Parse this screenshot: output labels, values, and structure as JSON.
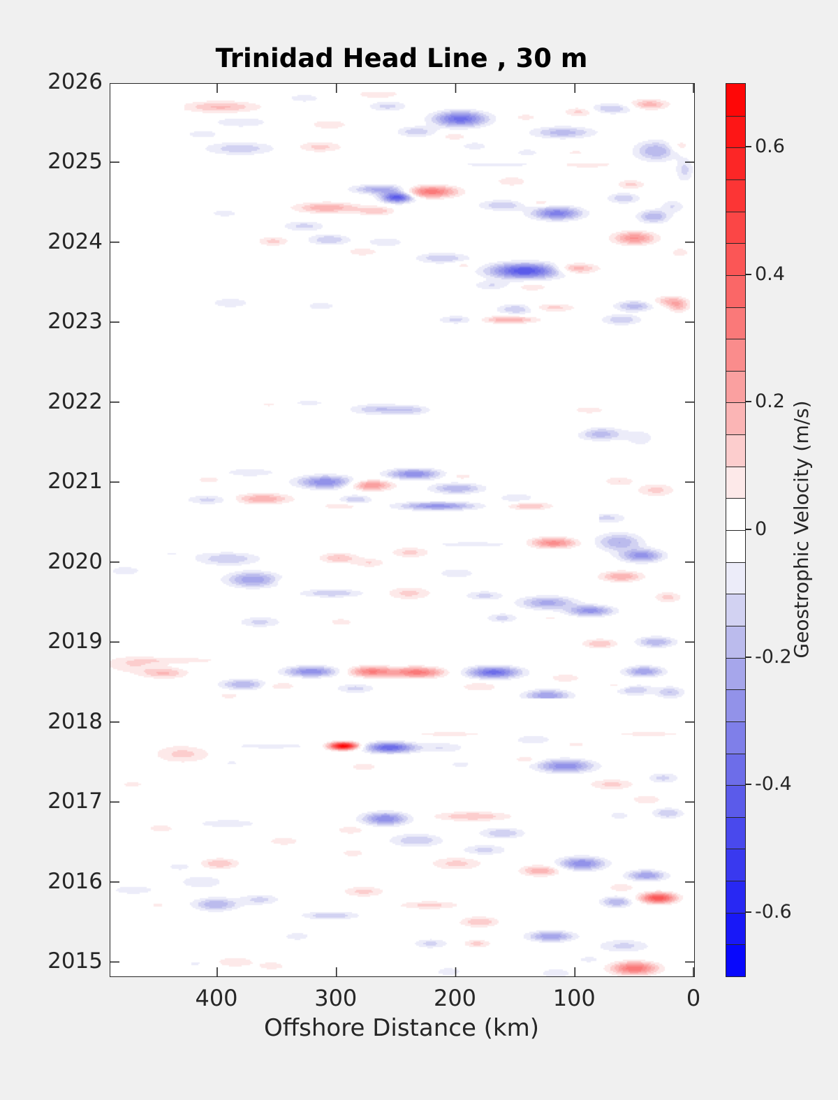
{
  "figure": {
    "background_color": "#f0f0f0",
    "axis_color": "#262626",
    "title_color": "#000000"
  },
  "chart_data": {
    "type": "heatmap",
    "subtype": "filled-contour-hovmoller",
    "title": "Trinidad Head Line , 30 m",
    "xlabel": "Offshore Distance (km)",
    "x_ticks": [
      400,
      300,
      200,
      100,
      0
    ],
    "x_tick_labels": [
      "400",
      "300",
      "200",
      "100",
      "0"
    ],
    "x_range_km": [
      489,
      0
    ],
    "x_axis_reversed": true,
    "y_ticks": [
      2026,
      2025,
      2024,
      2023,
      2022,
      2021,
      2020,
      2019,
      2018,
      2017,
      2016,
      2015
    ],
    "y_range_years": [
      2014.82,
      2025.98
    ],
    "grid": false,
    "colorbar": {
      "label": "Geostrophic Velocity (m/s)",
      "range": [
        -0.7,
        0.7
      ],
      "level_step": 0.05,
      "ticks": [
        0.6,
        0.4,
        0.2,
        0,
        -0.2,
        -0.4,
        -0.6
      ],
      "tick_labels": [
        "0.6",
        "0.4",
        "0.2",
        "0",
        "-0.2",
        "-0.4",
        "-0.6"
      ],
      "max_color": "#ff0000",
      "zero_color": "#ffffff",
      "min_color": "#0000ff",
      "outline_color": "#262626"
    },
    "anomalies_format": [
      "offshore_km",
      "year",
      "peak_velocity_m_per_s",
      "sigma_km",
      "sigma_yr"
    ],
    "anomalies": [
      [
        397,
        2025.69,
        0.16,
        22,
        0.05
      ],
      [
        380,
        2025.5,
        -0.1,
        16,
        0.045
      ],
      [
        412,
        2025.35,
        -0.08,
        11,
        0.04
      ],
      [
        381,
        2025.17,
        -0.14,
        20,
        0.055
      ],
      [
        314,
        2025.19,
        0.12,
        13,
        0.045
      ],
      [
        306,
        2025.47,
        0.1,
        11,
        0.04
      ],
      [
        327,
        2025.8,
        -0.08,
        11,
        0.04
      ],
      [
        265,
        2025.85,
        0.1,
        13,
        0.04
      ],
      [
        257,
        2025.7,
        -0.12,
        11,
        0.045
      ],
      [
        196,
        2025.54,
        -0.38,
        15,
        0.065
      ],
      [
        233,
        2025.38,
        -0.14,
        11,
        0.045
      ],
      [
        201,
        2025.32,
        0.1,
        7,
        0.03
      ],
      [
        184,
        2025.2,
        -0.08,
        9,
        0.04
      ],
      [
        110,
        2025.37,
        -0.18,
        18,
        0.05
      ],
      [
        141,
        2025.56,
        0.08,
        7,
        0.03
      ],
      [
        96,
        2025.63,
        0.12,
        9,
        0.04
      ],
      [
        69,
        2025.67,
        -0.15,
        13,
        0.045
      ],
      [
        38,
        2025.72,
        0.18,
        11,
        0.045
      ],
      [
        32,
        2025.14,
        -0.2,
        12,
        0.085
      ],
      [
        12,
        2025.2,
        0.1,
        6,
        0.05
      ],
      [
        140,
        2025.12,
        -0.07,
        9,
        0.04
      ],
      [
        99,
        2025.12,
        0.06,
        8,
        0.03
      ],
      [
        165,
        2024.97,
        -0.08,
        26,
        0.022
      ],
      [
        90,
        2024.97,
        0.1,
        16,
        0.028
      ],
      [
        221,
        2024.63,
        0.34,
        15,
        0.05
      ],
      [
        249,
        2024.56,
        -0.45,
        9,
        0.045
      ],
      [
        263,
        2024.66,
        -0.22,
        16,
        0.04
      ],
      [
        161,
        2024.46,
        -0.15,
        13,
        0.045
      ],
      [
        153,
        2024.76,
        0.1,
        9,
        0.04
      ],
      [
        129,
        2024.49,
        0.08,
        8,
        0.03
      ],
      [
        115,
        2024.36,
        -0.33,
        14,
        0.055
      ],
      [
        53,
        2024.72,
        0.12,
        8,
        0.04
      ],
      [
        59,
        2024.55,
        -0.15,
        9,
        0.045
      ],
      [
        34,
        2024.32,
        -0.2,
        9,
        0.055
      ],
      [
        50,
        2024.05,
        0.26,
        12,
        0.055
      ],
      [
        308,
        2024.43,
        0.2,
        18,
        0.045
      ],
      [
        267,
        2024.39,
        0.14,
        11,
        0.04
      ],
      [
        394,
        2024.36,
        -0.07,
        11,
        0.04
      ],
      [
        327,
        2024.2,
        -0.12,
        12,
        0.045
      ],
      [
        306,
        2024.03,
        -0.15,
        12,
        0.045
      ],
      [
        353,
        2024.01,
        0.12,
        9,
        0.04
      ],
      [
        259,
        2024.0,
        -0.1,
        11,
        0.04
      ],
      [
        278,
        2023.88,
        0.1,
        9,
        0.035
      ],
      [
        12,
        2023.87,
        0.08,
        6,
        0.045
      ],
      [
        18,
        2024.45,
        -0.1,
        7,
        0.055
      ],
      [
        8,
        2024.9,
        -0.12,
        5,
        0.1
      ],
      [
        142,
        2023.64,
        -0.45,
        20,
        0.065
      ],
      [
        99,
        2023.67,
        0.2,
        12,
        0.045
      ],
      [
        211,
        2023.8,
        -0.15,
        15,
        0.045
      ],
      [
        193,
        2023.71,
        0.08,
        7,
        0.03
      ],
      [
        170,
        2023.46,
        -0.1,
        11,
        0.04
      ],
      [
        136,
        2023.44,
        0.1,
        9,
        0.035
      ],
      [
        149,
        2023.16,
        -0.15,
        11,
        0.045
      ],
      [
        118,
        2023.18,
        0.12,
        13,
        0.035
      ],
      [
        155,
        2023.03,
        0.2,
        16,
        0.032
      ],
      [
        199,
        2023.03,
        -0.12,
        11,
        0.035
      ],
      [
        61,
        2023.03,
        -0.15,
        11,
        0.045
      ],
      [
        21,
        2023.26,
        0.15,
        9,
        0.045
      ],
      [
        50,
        2023.2,
        -0.18,
        11,
        0.045
      ],
      [
        13,
        2023.2,
        0.15,
        6,
        0.055
      ],
      [
        389,
        2023.24,
        -0.09,
        12,
        0.045
      ],
      [
        341,
        2023.46,
        -0.05,
        9,
        0.035
      ],
      [
        313,
        2023.2,
        -0.08,
        10,
        0.04
      ],
      [
        356,
        2021.97,
        0.06,
        9,
        0.028
      ],
      [
        323,
        2021.99,
        -0.07,
        13,
        0.028
      ],
      [
        265,
        2021.91,
        -0.15,
        16,
        0.045
      ],
      [
        237,
        2021.9,
        -0.12,
        11,
        0.04
      ],
      [
        88,
        2021.9,
        0.08,
        11,
        0.035
      ],
      [
        78,
        2021.6,
        -0.18,
        13,
        0.055
      ],
      [
        102,
        2021.66,
        0.06,
        8,
        0.035
      ],
      [
        45,
        2021.55,
        -0.08,
        9,
        0.075
      ],
      [
        268,
        2021.43,
        0.05,
        6,
        0.03
      ],
      [
        407,
        2021.03,
        0.08,
        8,
        0.035
      ],
      [
        372,
        2021.12,
        -0.1,
        15,
        0.035
      ],
      [
        309,
        2021.0,
        -0.3,
        16,
        0.055
      ],
      [
        271,
        2020.96,
        0.26,
        12,
        0.045
      ],
      [
        235,
        2021.1,
        -0.3,
        15,
        0.045
      ],
      [
        195,
        2021.07,
        0.08,
        7,
        0.03
      ],
      [
        199,
        2020.92,
        -0.2,
        15,
        0.045
      ],
      [
        63,
        2021.01,
        0.1,
        9,
        0.04
      ],
      [
        32,
        2020.9,
        0.12,
        11,
        0.055
      ],
      [
        149,
        2020.8,
        -0.1,
        11,
        0.04
      ],
      [
        138,
        2020.7,
        0.15,
        13,
        0.035
      ],
      [
        215,
        2020.7,
        -0.28,
        22,
        0.035
      ],
      [
        362,
        2020.79,
        0.2,
        16,
        0.045
      ],
      [
        407,
        2020.78,
        -0.12,
        13,
        0.04
      ],
      [
        296,
        2020.7,
        0.1,
        11,
        0.03
      ],
      [
        284,
        2020.78,
        -0.15,
        9,
        0.04
      ],
      [
        73,
        2020.55,
        -0.12,
        11,
        0.045
      ],
      [
        91,
        2020.43,
        0.06,
        7,
        0.03
      ],
      [
        63,
        2020.25,
        -0.2,
        13,
        0.075
      ],
      [
        44,
        2020.08,
        -0.28,
        12,
        0.055
      ],
      [
        118,
        2020.24,
        0.28,
        13,
        0.045
      ],
      [
        186,
        2020.22,
        -0.1,
        22,
        0.022
      ],
      [
        238,
        2020.12,
        0.12,
        11,
        0.045
      ],
      [
        440,
        2020.11,
        -0.05,
        16,
        0.028
      ],
      [
        391,
        2020.04,
        -0.15,
        18,
        0.055
      ],
      [
        370,
        2019.78,
        -0.25,
        15,
        0.065
      ],
      [
        477,
        2019.89,
        -0.08,
        11,
        0.045
      ],
      [
        298,
        2020.05,
        0.15,
        11,
        0.045
      ],
      [
        272,
        2019.99,
        0.1,
        9,
        0.04
      ],
      [
        340,
        2019.76,
        0.07,
        7,
        0.03
      ],
      [
        304,
        2019.61,
        -0.15,
        18,
        0.035
      ],
      [
        199,
        2019.86,
        -0.1,
        11,
        0.04
      ],
      [
        61,
        2019.82,
        0.2,
        12,
        0.045
      ],
      [
        239,
        2019.61,
        0.12,
        13,
        0.055
      ],
      [
        176,
        2019.58,
        -0.12,
        11,
        0.04
      ],
      [
        123,
        2019.49,
        -0.22,
        16,
        0.055
      ],
      [
        87,
        2019.39,
        -0.28,
        13,
        0.045
      ],
      [
        161,
        2019.3,
        -0.12,
        9,
        0.04
      ],
      [
        120,
        2019.3,
        0.06,
        7,
        0.03
      ],
      [
        364,
        2019.25,
        -0.12,
        12,
        0.045
      ],
      [
        296,
        2019.25,
        0.08,
        8,
        0.035
      ],
      [
        32,
        2019.0,
        -0.2,
        11,
        0.045
      ],
      [
        79,
        2018.98,
        0.15,
        10,
        0.04
      ],
      [
        22,
        2019.56,
        0.12,
        8,
        0.045
      ],
      [
        470,
        2018.72,
        0.1,
        18,
        0.075
      ],
      [
        444,
        2018.61,
        0.15,
        13,
        0.045
      ],
      [
        430,
        2018.77,
        0.08,
        26,
        0.028
      ],
      [
        321,
        2018.63,
        -0.3,
        15,
        0.045
      ],
      [
        271,
        2018.63,
        0.3,
        13,
        0.045
      ],
      [
        232,
        2018.62,
        0.33,
        15,
        0.045
      ],
      [
        168,
        2018.62,
        -0.38,
        15,
        0.05
      ],
      [
        378,
        2018.47,
        -0.2,
        13,
        0.045
      ],
      [
        347,
        2018.45,
        0.1,
        9,
        0.035
      ],
      [
        108,
        2018.55,
        0.1,
        9,
        0.035
      ],
      [
        42,
        2018.63,
        -0.25,
        11,
        0.045
      ],
      [
        180,
        2018.44,
        0.1,
        11,
        0.04
      ],
      [
        123,
        2018.33,
        -0.25,
        13,
        0.05
      ],
      [
        50,
        2018.4,
        -0.15,
        11,
        0.045
      ],
      [
        65,
        2018.45,
        0.08,
        8,
        0.03
      ],
      [
        20,
        2018.37,
        -0.15,
        8,
        0.05
      ],
      [
        284,
        2018.42,
        -0.12,
        11,
        0.04
      ],
      [
        390,
        2018.33,
        0.08,
        7,
        0.03
      ],
      [
        344,
        2018.2,
        0.06,
        7,
        0.028
      ],
      [
        205,
        2017.85,
        0.08,
        24,
        0.022
      ],
      [
        38,
        2017.85,
        0.08,
        24,
        0.022
      ],
      [
        294,
        2017.7,
        0.7,
        8,
        0.032
      ],
      [
        255,
        2017.68,
        -0.4,
        14,
        0.045
      ],
      [
        355,
        2017.7,
        -0.08,
        26,
        0.028
      ],
      [
        429,
        2017.6,
        0.12,
        16,
        0.075
      ],
      [
        471,
        2017.22,
        0.06,
        11,
        0.045
      ],
      [
        135,
        2017.78,
        -0.1,
        11,
        0.04
      ],
      [
        99,
        2017.72,
        0.07,
        7,
        0.03
      ],
      [
        211,
        2017.68,
        -0.1,
        13,
        0.045
      ],
      [
        196,
        2017.47,
        -0.08,
        7,
        0.03
      ],
      [
        108,
        2017.45,
        -0.3,
        16,
        0.055
      ],
      [
        141,
        2017.53,
        0.1,
        7,
        0.03
      ],
      [
        69,
        2017.22,
        0.12,
        13,
        0.045
      ],
      [
        26,
        2017.3,
        -0.12,
        9,
        0.045
      ],
      [
        40,
        2017.03,
        0.1,
        9,
        0.04
      ],
      [
        388,
        2017.49,
        -0.06,
        7,
        0.03
      ],
      [
        322,
        2017.37,
        -0.05,
        7,
        0.03
      ],
      [
        277,
        2017.44,
        0.08,
        9,
        0.04
      ],
      [
        259,
        2016.79,
        -0.3,
        13,
        0.055
      ],
      [
        391,
        2016.73,
        -0.1,
        18,
        0.035
      ],
      [
        447,
        2016.67,
        0.08,
        9,
        0.04
      ],
      [
        344,
        2016.51,
        0.1,
        9,
        0.035
      ],
      [
        288,
        2016.65,
        0.1,
        8,
        0.035
      ],
      [
        286,
        2016.36,
        0.08,
        8,
        0.035
      ],
      [
        186,
        2016.82,
        0.15,
        22,
        0.04
      ],
      [
        233,
        2016.52,
        -0.15,
        15,
        0.055
      ],
      [
        161,
        2016.61,
        -0.15,
        13,
        0.045
      ],
      [
        176,
        2016.4,
        -0.12,
        13,
        0.045
      ],
      [
        22,
        2016.86,
        -0.15,
        9,
        0.045
      ],
      [
        63,
        2016.83,
        -0.08,
        7,
        0.035
      ],
      [
        94,
        2016.23,
        -0.3,
        13,
        0.055
      ],
      [
        40,
        2016.08,
        -0.25,
        11,
        0.045
      ],
      [
        199,
        2016.23,
        0.12,
        15,
        0.055
      ],
      [
        129,
        2016.14,
        0.2,
        11,
        0.045
      ],
      [
        398,
        2016.23,
        0.15,
        11,
        0.045
      ],
      [
        431,
        2016.19,
        -0.08,
        8,
        0.035
      ],
      [
        413,
        2016.0,
        -0.1,
        13,
        0.055
      ],
      [
        401,
        2015.72,
        -0.2,
        13,
        0.055
      ],
      [
        364,
        2015.78,
        -0.12,
        11,
        0.045
      ],
      [
        470,
        2015.9,
        -0.08,
        15,
        0.045
      ],
      [
        277,
        2015.88,
        0.12,
        12,
        0.045
      ],
      [
        61,
        2015.93,
        0.1,
        8,
        0.035
      ],
      [
        30,
        2015.8,
        0.45,
        10,
        0.045
      ],
      [
        65,
        2015.75,
        -0.2,
        9,
        0.045
      ],
      [
        222,
        2015.71,
        0.12,
        18,
        0.035
      ],
      [
        450,
        2015.71,
        0.06,
        7,
        0.028
      ],
      [
        305,
        2015.58,
        -0.15,
        16,
        0.035
      ],
      [
        180,
        2015.5,
        0.15,
        11,
        0.045
      ],
      [
        120,
        2015.32,
        -0.25,
        13,
        0.045
      ],
      [
        221,
        2015.23,
        -0.12,
        10,
        0.04
      ],
      [
        182,
        2015.23,
        0.12,
        8,
        0.035
      ],
      [
        59,
        2015.2,
        -0.12,
        15,
        0.055
      ],
      [
        88,
        2015.03,
        -0.08,
        7,
        0.03
      ],
      [
        50,
        2014.92,
        0.35,
        13,
        0.055
      ],
      [
        116,
        2014.86,
        -0.1,
        9,
        0.04
      ],
      [
        333,
        2015.32,
        -0.08,
        9,
        0.04
      ],
      [
        385,
        2015.0,
        0.1,
        11,
        0.045
      ],
      [
        418,
        2014.98,
        -0.06,
        7,
        0.03
      ],
      [
        354,
        2014.95,
        0.08,
        9,
        0.04
      ],
      [
        206,
        2014.88,
        -0.08,
        9,
        0.04
      ]
    ],
    "no_data_bands": [
      {
        "year_min": 2025.87,
        "year_max": 2026.2,
        "km_min": 0,
        "km_max": 500
      },
      {
        "year_min": 2022.03,
        "year_max": 2022.96,
        "km_min": 0,
        "km_max": 500
      },
      {
        "year_min": 2020.38,
        "year_max": 2020.6,
        "km_min": 80,
        "km_max": 500
      },
      {
        "year_min": 2018.0,
        "year_max": 2018.29,
        "km_min": 0,
        "km_max": 500
      },
      {
        "year_min": 2024.99,
        "year_max": 2025.05,
        "km_min": 55,
        "km_max": 250
      },
      {
        "year_min": 2022.3,
        "year_max": 2026.2,
        "km_min": 428,
        "km_max": 500
      },
      {
        "year_min": 2020.62,
        "year_max": 2022.3,
        "km_min": 457,
        "km_max": 500
      }
    ]
  }
}
